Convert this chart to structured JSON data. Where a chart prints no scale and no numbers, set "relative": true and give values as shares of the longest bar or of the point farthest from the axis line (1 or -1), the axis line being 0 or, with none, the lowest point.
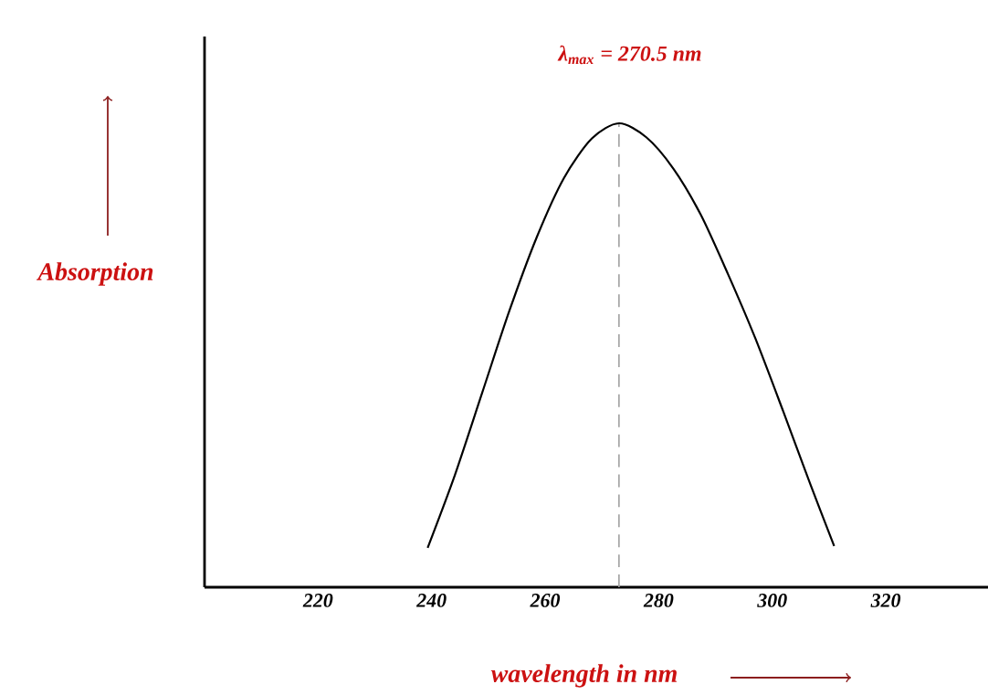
{
  "chart_data": {
    "type": "line",
    "relative": true,
    "xlabel": "wavelength in nm",
    "ylabel": "Absorption",
    "x": [
      239.3,
      244.1,
      248.9,
      253.7,
      258.5,
      263.3,
      268.2,
      273.0,
      277.8,
      282.6,
      287.4,
      292.2,
      297.0,
      301.9,
      306.7,
      310.9
    ],
    "series": [
      {
        "color": "#000000",
        "values": [
          0.085,
          0.242,
          0.419,
          0.596,
          0.754,
          0.882,
          0.967,
          1,
          0.97,
          0.902,
          0.803,
          0.675,
          0.537,
          0.38,
          0.222,
          0.089
        ]
      }
    ],
    "xlim": [
      200,
      338
    ],
    "xticks": [
      220,
      240,
      260,
      280,
      300,
      320
    ],
    "tick_labels": "x",
    "marker": "none",
    "line_style": "solid",
    "ref_lines": [
      {
        "axis": "x",
        "value": 273.0,
        "color": "#a0a0a0",
        "line_style": "dashed"
      }
    ],
    "annotations": [
      "λ$_{max}$ = 270.5 nm"
    ]
  }
}
